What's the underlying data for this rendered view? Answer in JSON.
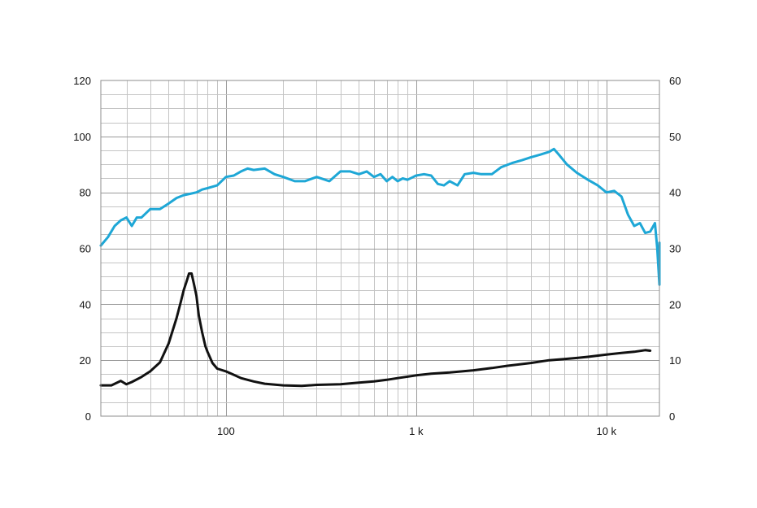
{
  "chart_data": {
    "type": "line",
    "x_scale": "log",
    "xlim": [
      22,
      19000
    ],
    "ylim_left": [
      0,
      120
    ],
    "ylim_right": [
      0,
      60
    ],
    "left_ticks": [
      "0",
      "20",
      "40",
      "60",
      "80",
      "100",
      "120"
    ],
    "right_ticks": [
      "0",
      "10",
      "20",
      "30",
      "40",
      "50",
      "60"
    ],
    "x_ticks": [
      {
        "value": 100,
        "label": "100"
      },
      {
        "value": 1000,
        "label": "1 k"
      },
      {
        "value": 10000,
        "label": "10 k"
      }
    ],
    "grid": true,
    "colors": {
      "spl": "#1ea7d6",
      "impedance": "#111111",
      "grid": "#b0b0b0"
    },
    "series": [
      {
        "axis": "left",
        "color": "#1ea7d6",
        "points": [
          [
            22,
            61
          ],
          [
            24,
            64
          ],
          [
            26,
            68
          ],
          [
            28,
            70
          ],
          [
            30,
            71
          ],
          [
            32,
            68
          ],
          [
            34,
            71
          ],
          [
            36,
            71
          ],
          [
            40,
            74
          ],
          [
            45,
            74
          ],
          [
            50,
            76
          ],
          [
            55,
            78
          ],
          [
            60,
            79
          ],
          [
            65,
            79.5
          ],
          [
            70,
            80
          ],
          [
            75,
            81
          ],
          [
            80,
            81.5
          ],
          [
            90,
            82.5
          ],
          [
            100,
            85.5
          ],
          [
            110,
            86
          ],
          [
            120,
            87.5
          ],
          [
            130,
            88.5
          ],
          [
            140,
            88
          ],
          [
            160,
            88.5
          ],
          [
            180,
            86.5
          ],
          [
            200,
            85.5
          ],
          [
            230,
            84
          ],
          [
            260,
            84
          ],
          [
            300,
            85.5
          ],
          [
            350,
            84
          ],
          [
            400,
            87.5
          ],
          [
            450,
            87.5
          ],
          [
            500,
            86.5
          ],
          [
            550,
            87.5
          ],
          [
            600,
            85.5
          ],
          [
            650,
            86.5
          ],
          [
            700,
            84
          ],
          [
            750,
            85.5
          ],
          [
            800,
            84
          ],
          [
            850,
            85
          ],
          [
            900,
            84.5
          ],
          [
            1000,
            86
          ],
          [
            1100,
            86.5
          ],
          [
            1200,
            86
          ],
          [
            1300,
            83
          ],
          [
            1400,
            82.5
          ],
          [
            1500,
            84
          ],
          [
            1650,
            82.5
          ],
          [
            1800,
            86.5
          ],
          [
            2000,
            87
          ],
          [
            2200,
            86.5
          ],
          [
            2500,
            86.5
          ],
          [
            2800,
            89
          ],
          [
            3200,
            90.5
          ],
          [
            3600,
            91.5
          ],
          [
            4000,
            92.5
          ],
          [
            4500,
            93.5
          ],
          [
            5000,
            94.5
          ],
          [
            5300,
            95.5
          ],
          [
            5700,
            93
          ],
          [
            6200,
            90
          ],
          [
            7000,
            87
          ],
          [
            8000,
            84.5
          ],
          [
            9000,
            82.5
          ],
          [
            10000,
            80
          ],
          [
            11000,
            80.5
          ],
          [
            12000,
            78.5
          ],
          [
            13000,
            72
          ],
          [
            14000,
            68
          ],
          [
            15000,
            69
          ],
          [
            16000,
            65.5
          ],
          [
            17000,
            66
          ],
          [
            18000,
            69
          ],
          [
            18500,
            60
          ],
          [
            19000,
            47
          ],
          [
            19000,
            62
          ]
        ]
      },
      {
        "axis": "right",
        "color": "#111111",
        "points": [
          [
            22,
            5.5
          ],
          [
            25,
            5.5
          ],
          [
            28,
            6.3
          ],
          [
            30,
            5.7
          ],
          [
            32,
            6.1
          ],
          [
            36,
            7
          ],
          [
            40,
            8
          ],
          [
            45,
            9.6
          ],
          [
            50,
            13
          ],
          [
            55,
            17.5
          ],
          [
            58,
            20.5
          ],
          [
            60,
            22.5
          ],
          [
            62,
            24
          ],
          [
            64,
            25.5
          ],
          [
            66,
            25.5
          ],
          [
            68,
            23.5
          ],
          [
            70,
            21.5
          ],
          [
            72,
            18
          ],
          [
            75,
            15
          ],
          [
            78,
            12.5
          ],
          [
            80,
            11.5
          ],
          [
            85,
            9.5
          ],
          [
            90,
            8.5
          ],
          [
            100,
            8
          ],
          [
            110,
            7.4
          ],
          [
            120,
            6.8
          ],
          [
            140,
            6.2
          ],
          [
            160,
            5.8
          ],
          [
            200,
            5.5
          ],
          [
            250,
            5.4
          ],
          [
            300,
            5.6
          ],
          [
            400,
            5.7
          ],
          [
            500,
            6
          ],
          [
            600,
            6.2
          ],
          [
            700,
            6.5
          ],
          [
            800,
            6.8
          ],
          [
            1000,
            7.3
          ],
          [
            1200,
            7.6
          ],
          [
            1500,
            7.8
          ],
          [
            2000,
            8.2
          ],
          [
            2500,
            8.6
          ],
          [
            3000,
            9
          ],
          [
            4000,
            9.5
          ],
          [
            5000,
            10
          ],
          [
            6000,
            10.2
          ],
          [
            7000,
            10.4
          ],
          [
            8000,
            10.6
          ],
          [
            10000,
            11
          ],
          [
            12000,
            11.3
          ],
          [
            14000,
            11.5
          ],
          [
            16000,
            11.8
          ],
          [
            17000,
            11.7
          ]
        ]
      }
    ]
  }
}
